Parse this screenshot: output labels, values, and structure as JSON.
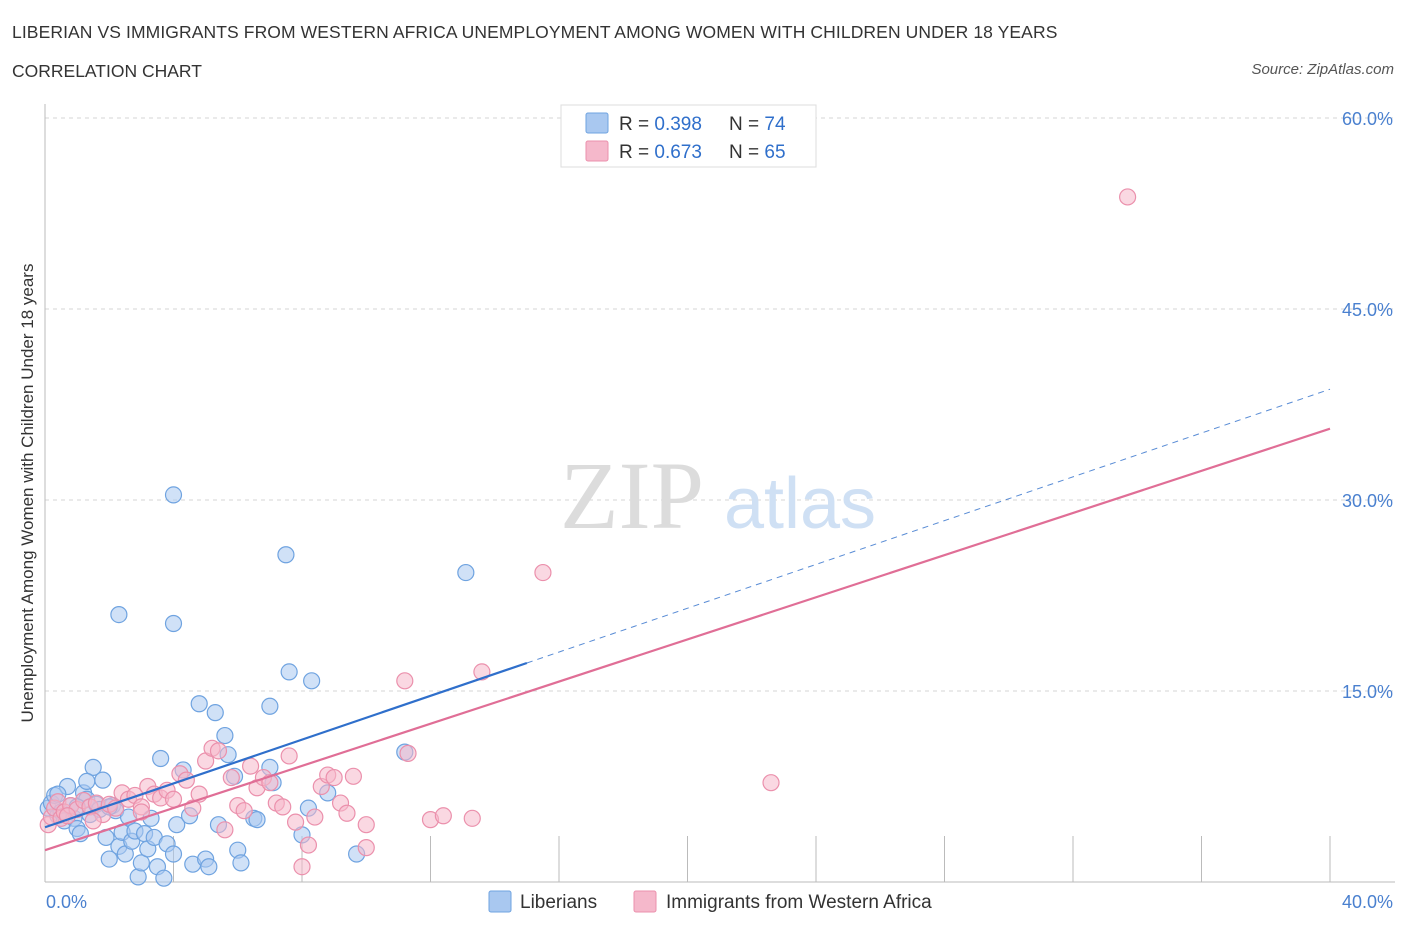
{
  "title": "LIBERIAN VS IMMIGRANTS FROM WESTERN AFRICA UNEMPLOYMENT AMONG WOMEN WITH CHILDREN UNDER 18 YEARS",
  "subtitle": "CORRELATION CHART",
  "source": "Source: ZipAtlas.com",
  "watermark": {
    "zip": "ZIP",
    "atlas": "atlas"
  },
  "legend_box": {
    "rows": [
      {
        "r_label": "R = ",
        "r_value": "0.398",
        "n_label": "N = ",
        "n_value": "74",
        "color": "#a9c8f0"
      },
      {
        "r_label": "R = ",
        "r_value": "0.673",
        "n_label": "N = ",
        "n_value": "65",
        "color": "#f5b8cb"
      }
    ]
  },
  "chart_data": {
    "type": "scatter",
    "title": "",
    "xlabel": "",
    "ylabel": "Unemployment Among Women with Children Under 18 years",
    "xlim": [
      0,
      40
    ],
    "ylim": [
      0,
      60
    ],
    "x_tick_labels": [
      "0.0%",
      "40.0%"
    ],
    "y_ticks": [
      15,
      30,
      45,
      60
    ],
    "y_tick_labels": [
      "15.0%",
      "30.0%",
      "45.0%",
      "60.0%"
    ],
    "grid": true,
    "legend_position": "bottom-center",
    "series": [
      {
        "name": "Liberians",
        "color": "#6fa3e0",
        "fill": "#a9c8f0",
        "line_color": "#2f6fcb",
        "trend": {
          "x0": 0,
          "y0": 4.3,
          "x1": 15,
          "y1": 17.2,
          "x_ext": 40,
          "y_ext": 38.7
        },
        "points": [
          [
            0.1,
            5.8
          ],
          [
            0.2,
            6.2
          ],
          [
            0.3,
            6.8
          ],
          [
            0.4,
            5.2
          ],
          [
            0.5,
            5.5
          ],
          [
            0.6,
            4.8
          ],
          [
            0.7,
            7.5
          ],
          [
            0.8,
            6.0
          ],
          [
            0.9,
            5.0
          ],
          [
            1.0,
            4.2
          ],
          [
            1.1,
            3.8
          ],
          [
            1.2,
            7.0
          ],
          [
            1.3,
            6.5
          ],
          [
            1.4,
            5.3
          ],
          [
            1.5,
            9.0
          ],
          [
            1.6,
            6.1
          ],
          [
            1.7,
            5.7
          ],
          [
            1.8,
            8.0
          ],
          [
            1.9,
            3.5
          ],
          [
            2.0,
            1.8
          ],
          [
            2.1,
            6.0
          ],
          [
            2.2,
            5.6
          ],
          [
            2.3,
            2.8
          ],
          [
            2.4,
            3.9
          ],
          [
            2.5,
            2.2
          ],
          [
            2.6,
            5.1
          ],
          [
            2.7,
            3.2
          ],
          [
            2.8,
            4.0
          ],
          [
            2.9,
            0.4
          ],
          [
            3.0,
            1.5
          ],
          [
            3.1,
            3.8
          ],
          [
            3.2,
            2.6
          ],
          [
            3.3,
            5.0
          ],
          [
            3.4,
            3.5
          ],
          [
            3.5,
            1.2
          ],
          [
            3.6,
            9.7
          ],
          [
            3.7,
            0.3
          ],
          [
            3.8,
            3.0
          ],
          [
            4.0,
            2.2
          ],
          [
            4.1,
            4.5
          ],
          [
            4.3,
            8.8
          ],
          [
            4.5,
            5.2
          ],
          [
            4.6,
            1.4
          ],
          [
            4.8,
            14.0
          ],
          [
            5.0,
            1.8
          ],
          [
            5.1,
            1.2
          ],
          [
            5.3,
            13.3
          ],
          [
            5.4,
            4.5
          ],
          [
            5.6,
            11.5
          ],
          [
            5.7,
            10.0
          ],
          [
            5.9,
            8.3
          ],
          [
            6.0,
            2.5
          ],
          [
            6.1,
            1.5
          ],
          [
            6.5,
            5.0
          ],
          [
            6.6,
            4.9
          ],
          [
            7.0,
            9.0
          ],
          [
            7.1,
            7.8
          ],
          [
            2.3,
            21.0
          ],
          [
            4.0,
            20.3
          ],
          [
            4.0,
            30.4
          ],
          [
            7.5,
            25.7
          ],
          [
            7.6,
            16.5
          ],
          [
            8.3,
            15.8
          ],
          [
            8.0,
            3.7
          ],
          [
            8.2,
            5.8
          ],
          [
            9.7,
            2.2
          ],
          [
            11.2,
            10.2
          ],
          [
            13.1,
            24.3
          ],
          [
            7.0,
            13.8
          ],
          [
            1.0,
            5.9
          ],
          [
            0.4,
            6.9
          ],
          [
            1.3,
            7.9
          ],
          [
            8.8,
            7.0
          ],
          [
            2.0,
            5.9
          ]
        ]
      },
      {
        "name": "Immigrants from Western Africa",
        "color": "#eb90ac",
        "fill": "#f5b8cb",
        "line_color": "#e06e96",
        "trend": {
          "x0": 0,
          "y0": 2.5,
          "x1": 40,
          "y1": 35.6
        },
        "points": [
          [
            0.1,
            4.5
          ],
          [
            0.2,
            5.1
          ],
          [
            0.3,
            5.8
          ],
          [
            0.4,
            6.3
          ],
          [
            0.5,
            5.0
          ],
          [
            0.6,
            5.5
          ],
          [
            0.8,
            6.0
          ],
          [
            1.0,
            5.7
          ],
          [
            1.2,
            6.4
          ],
          [
            1.4,
            5.9
          ],
          [
            1.6,
            6.2
          ],
          [
            1.8,
            5.3
          ],
          [
            2.0,
            6.1
          ],
          [
            2.2,
            5.8
          ],
          [
            2.4,
            7.0
          ],
          [
            2.6,
            6.5
          ],
          [
            2.8,
            6.8
          ],
          [
            3.0,
            5.9
          ],
          [
            3.2,
            7.5
          ],
          [
            3.4,
            6.9
          ],
          [
            3.6,
            6.6
          ],
          [
            3.8,
            7.2
          ],
          [
            4.0,
            6.5
          ],
          [
            4.2,
            8.5
          ],
          [
            4.4,
            8.0
          ],
          [
            4.6,
            5.8
          ],
          [
            4.8,
            6.9
          ],
          [
            5.0,
            9.5
          ],
          [
            5.2,
            10.5
          ],
          [
            5.4,
            10.3
          ],
          [
            5.6,
            4.1
          ],
          [
            5.8,
            8.2
          ],
          [
            6.0,
            6.0
          ],
          [
            6.2,
            5.6
          ],
          [
            6.4,
            9.1
          ],
          [
            6.6,
            7.4
          ],
          [
            6.8,
            8.2
          ],
          [
            7.0,
            7.8
          ],
          [
            7.2,
            6.2
          ],
          [
            7.4,
            5.9
          ],
          [
            7.6,
            9.9
          ],
          [
            7.8,
            4.7
          ],
          [
            8.0,
            1.2
          ],
          [
            8.2,
            2.9
          ],
          [
            8.4,
            5.1
          ],
          [
            8.6,
            7.5
          ],
          [
            8.8,
            8.4
          ],
          [
            9.0,
            8.2
          ],
          [
            9.2,
            6.2
          ],
          [
            9.4,
            5.4
          ],
          [
            9.6,
            8.3
          ],
          [
            10.0,
            4.5
          ],
          [
            11.2,
            15.8
          ],
          [
            11.3,
            10.1
          ],
          [
            12.0,
            4.9
          ],
          [
            12.4,
            5.2
          ],
          [
            13.6,
            16.5
          ],
          [
            13.3,
            5.0
          ],
          [
            15.5,
            24.3
          ],
          [
            22.6,
            7.8
          ],
          [
            33.7,
            53.8
          ],
          [
            10.0,
            2.7
          ],
          [
            3.0,
            5.5
          ],
          [
            1.5,
            4.8
          ],
          [
            0.7,
            5.2
          ]
        ]
      }
    ]
  }
}
